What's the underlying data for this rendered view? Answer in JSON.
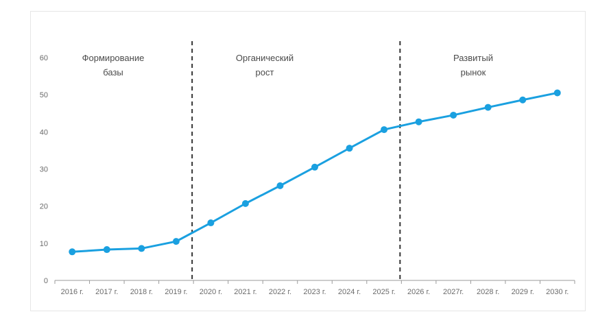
{
  "chart_data": {
    "type": "line",
    "categories": [
      "2016 г.",
      "2017 г.",
      "2018 г.",
      "2019 г.",
      "2020 г.",
      "2021 г.",
      "2022 г.",
      "2023 г.",
      "2024 г.",
      "2025 г.",
      "2026 г.",
      "2027г.",
      "2028 г.",
      "2029 г.",
      "2030 г."
    ],
    "series": [
      {
        "values": [
          7.7,
          8.3,
          8.6,
          10.5,
          15.5,
          20.7,
          25.5,
          30.5,
          35.6,
          40.6,
          42.7,
          44.5,
          46.6,
          48.6,
          50.5
        ],
        "color": "#1aa0e0"
      }
    ],
    "yticks": [
      "0",
      "10",
      "20",
      "30",
      "40",
      "50",
      "60"
    ],
    "ylim": [
      0,
      60
    ],
    "title": "",
    "xlabel": "",
    "ylabel": "",
    "grid": false,
    "legend": "none",
    "dividers": [
      {
        "after_category": "2019 г.",
        "style": "dashed"
      },
      {
        "after_category": "2025 г.",
        "style": "dashed"
      }
    ],
    "phases": [
      {
        "lines": [
          "Формирование",
          "базы"
        ]
      },
      {
        "lines": [
          "Органический",
          "рост"
        ]
      },
      {
        "lines": [
          "Развитый",
          "рынок"
        ]
      }
    ],
    "axis_color": "#9a9a9a",
    "divider_color": "#333333"
  }
}
